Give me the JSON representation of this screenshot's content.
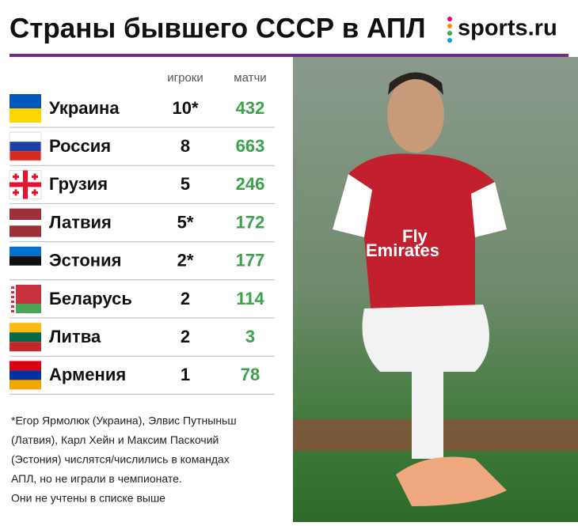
{
  "header": {
    "title": "Страны бывшего СССР в АПЛ",
    "logo": "sports.ru"
  },
  "table": {
    "columns": [
      "игроки",
      "матчи"
    ],
    "rows": [
      [
        "Украина",
        "10*",
        "432"
      ],
      [
        "Россия",
        "8",
        "663"
      ],
      [
        "Грузия",
        "5",
        "246"
      ],
      [
        "Латвия",
        "5*",
        "172"
      ],
      [
        "Эстония",
        "2*",
        "177"
      ],
      [
        "Беларусь",
        "2",
        "114"
      ],
      [
        "Литва",
        "2",
        "3"
      ],
      [
        "Армения",
        "1",
        "78"
      ]
    ]
  },
  "footnote": [
    "*Егор Ярмолюк (Украина), Элвис Путныньш",
    "(Латвия), Карл Хейн и Максим Паскочий",
    "(Эстония) числятся/числились в командах",
    "АПЛ, но не играли в чемпионате.",
    "Они не учтены в списке выше"
  ]
}
